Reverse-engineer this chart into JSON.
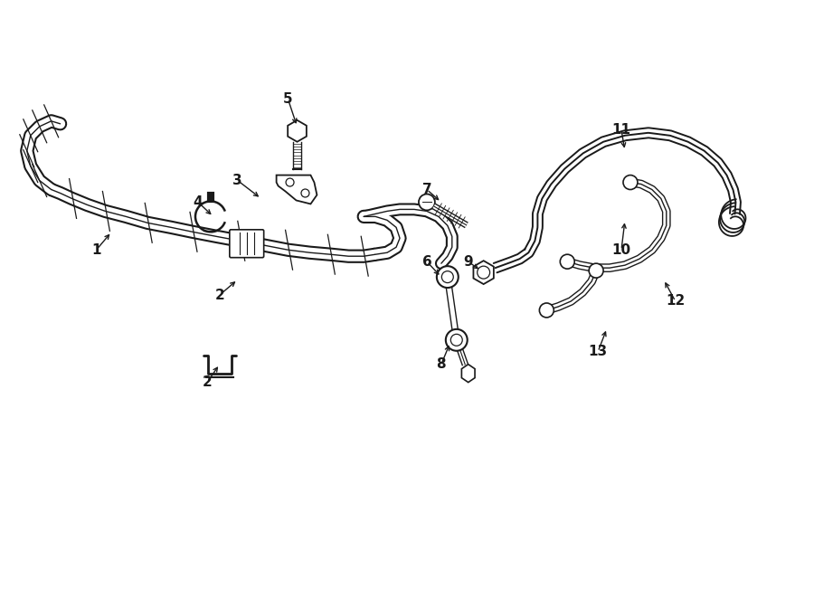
{
  "bg_color": "#ffffff",
  "line_color": "#1a1a1a",
  "fig_width": 9.0,
  "fig_height": 6.61,
  "dpi": 100,
  "label_data": [
    [
      "1",
      1.05,
      3.85,
      1.22,
      4.05
    ],
    [
      "2",
      2.42,
      3.35,
      2.62,
      3.52
    ],
    [
      "2",
      2.28,
      2.38,
      2.42,
      2.58
    ],
    [
      "3",
      2.62,
      4.62,
      2.88,
      4.42
    ],
    [
      "4",
      2.18,
      4.38,
      2.35,
      4.22
    ],
    [
      "5",
      3.18,
      5.52,
      3.28,
      5.22
    ],
    [
      "6",
      4.72,
      3.72,
      4.88,
      3.55
    ],
    [
      "7",
      4.72,
      4.52,
      4.88,
      4.38
    ],
    [
      "8",
      4.88,
      2.58,
      4.98,
      2.82
    ],
    [
      "9",
      5.18,
      3.72,
      5.32,
      3.62
    ],
    [
      "10",
      6.88,
      3.85,
      6.92,
      4.18
    ],
    [
      "11",
      6.88,
      5.18,
      6.92,
      4.95
    ],
    [
      "12",
      7.48,
      3.28,
      7.35,
      3.52
    ],
    [
      "13",
      6.62,
      2.72,
      6.72,
      2.98
    ]
  ]
}
